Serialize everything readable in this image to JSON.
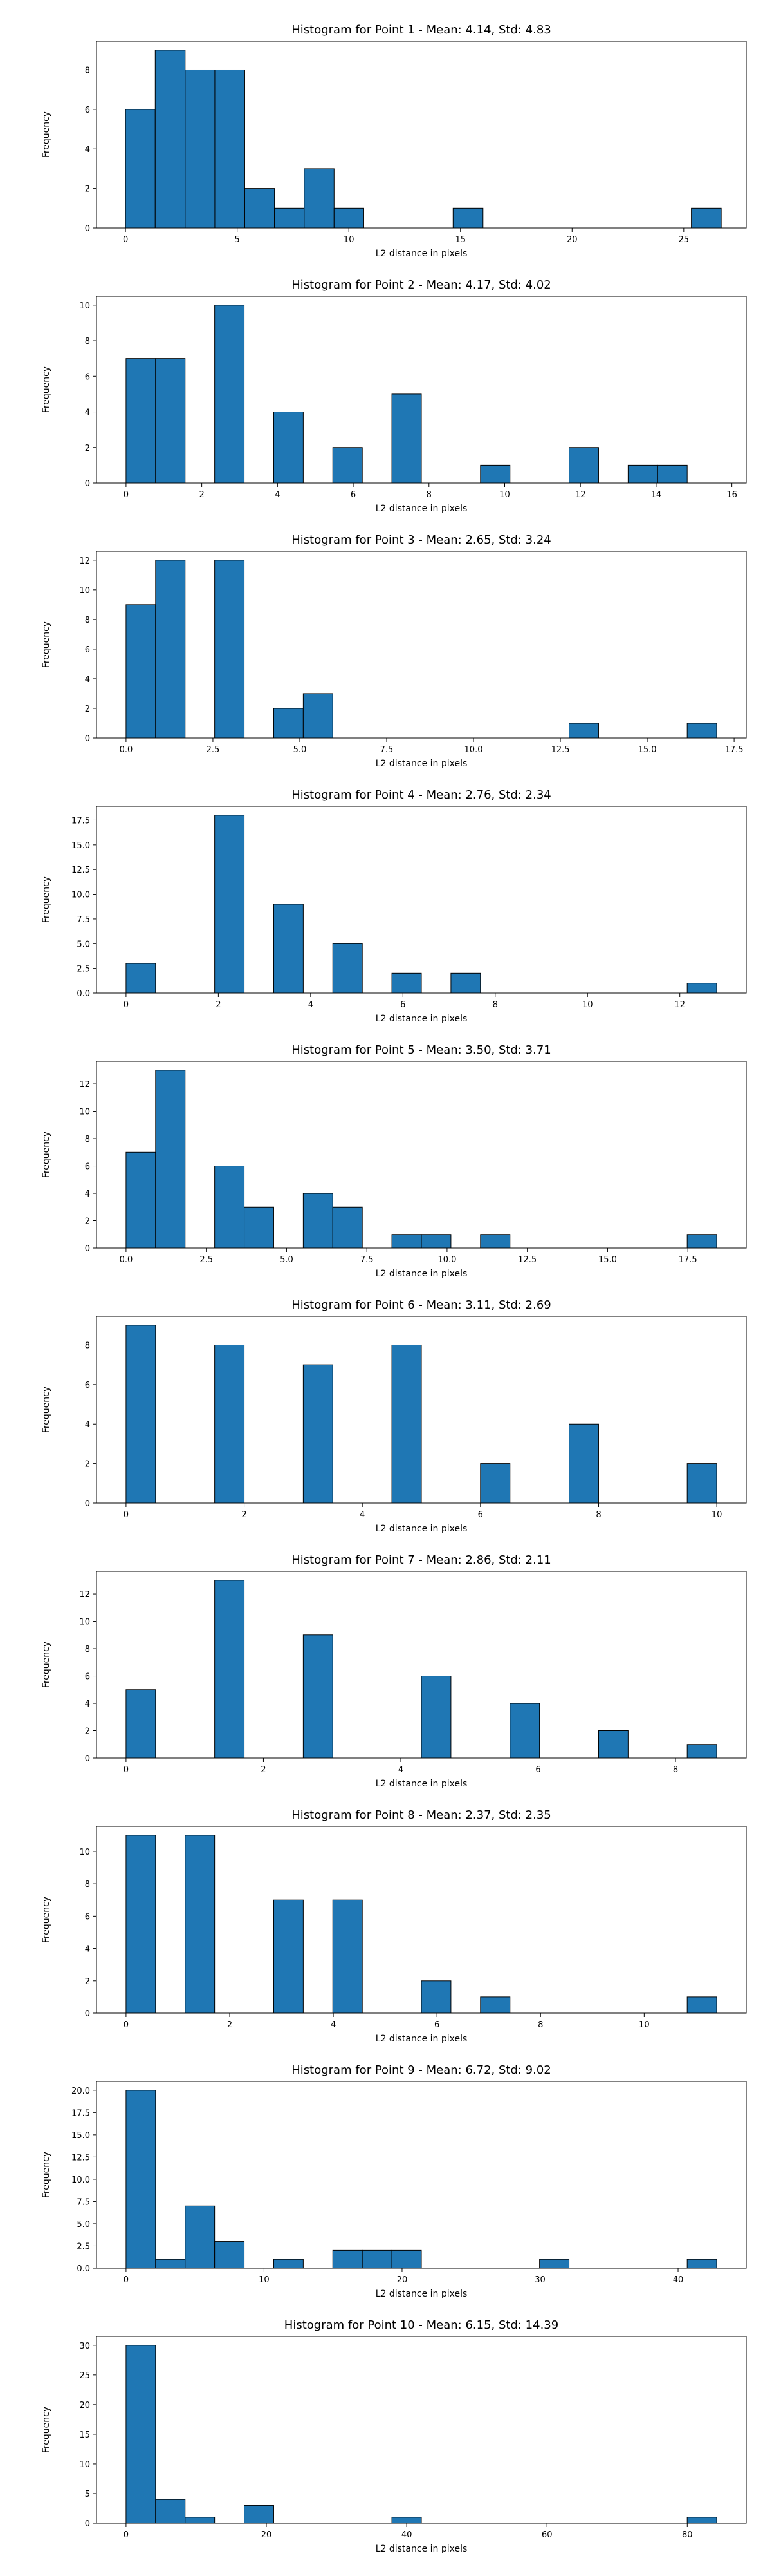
{
  "chart_data": [
    {
      "type": "bar",
      "title": "Histogram for Point 1 - Mean: 4.14, Std: 4.83",
      "xlabel": "L2 distance in pixels",
      "ylabel": "Frequency",
      "xlim": [
        -1.3,
        27.8
      ],
      "ylim": [
        0,
        9.45
      ],
      "xticks": [
        0,
        5,
        10,
        15,
        20,
        25
      ],
      "xtick_labels": [
        "0",
        "5",
        "10",
        "15",
        "20",
        "25"
      ],
      "yticks": [
        0,
        2,
        4,
        6,
        8
      ],
      "ytick_labels": [
        "0",
        "2",
        "4",
        "6",
        "8"
      ],
      "bin_edges": [
        0.0,
        1.33,
        2.67,
        4.0,
        5.34,
        6.67,
        8.0,
        9.34,
        10.67,
        12.0,
        13.34,
        14.67,
        16.01,
        17.34,
        18.67,
        20.01,
        21.34,
        22.68,
        24.01,
        25.34,
        26.68
      ],
      "values": [
        6,
        9,
        8,
        8,
        2,
        1,
        3,
        1,
        0,
        0,
        0,
        1,
        0,
        0,
        0,
        0,
        0,
        0,
        0,
        1
      ],
      "grid": false
    },
    {
      "type": "bar",
      "title": "Histogram for Point 2 - Mean: 4.17, Std: 4.02",
      "xlabel": "L2 distance in pixels",
      "ylabel": "Frequency",
      "xlim": [
        -0.78,
        16.38
      ],
      "ylim": [
        0,
        10.5
      ],
      "xticks": [
        0,
        2,
        4,
        6,
        8,
        10,
        12,
        14,
        16
      ],
      "xtick_labels": [
        "0",
        "2",
        "4",
        "6",
        "8",
        "10",
        "12",
        "14",
        "16"
      ],
      "yticks": [
        0,
        2,
        4,
        6,
        8,
        10
      ],
      "ytick_labels": [
        "0",
        "2",
        "4",
        "6",
        "8",
        "10"
      ],
      "bin_edges": [
        0.0,
        0.78,
        1.56,
        2.34,
        3.12,
        3.9,
        4.68,
        5.46,
        6.24,
        7.02,
        7.8,
        8.58,
        9.36,
        10.14,
        10.92,
        11.7,
        12.48,
        13.26,
        14.04,
        14.82,
        15.6
      ],
      "values": [
        7,
        7,
        0,
        10,
        0,
        4,
        0,
        2,
        0,
        5,
        0,
        0,
        1,
        0,
        0,
        2,
        0,
        1,
        1,
        0
      ],
      "grid": false
    },
    {
      "type": "bar",
      "title": "Histogram for Point 3 - Mean: 2.65, Std: 3.24",
      "xlabel": "L2 distance in pixels",
      "ylabel": "Frequency",
      "xlim": [
        -0.85,
        17.85
      ],
      "ylim": [
        0,
        12.6
      ],
      "xticks": [
        0,
        2.5,
        5,
        7.5,
        10,
        12.5,
        15,
        17.5
      ],
      "xtick_labels": [
        "0.0",
        "2.5",
        "5.0",
        "7.5",
        "10.0",
        "12.5",
        "15.0",
        "17.5"
      ],
      "yticks": [
        0,
        2,
        4,
        6,
        8,
        10,
        12
      ],
      "ytick_labels": [
        "0",
        "2",
        "4",
        "6",
        "8",
        "10",
        "12"
      ],
      "bin_edges": [
        0.0,
        0.85,
        1.7,
        2.55,
        3.4,
        4.25,
        5.1,
        5.95,
        6.8,
        7.65,
        8.5,
        9.35,
        10.2,
        11.05,
        11.9,
        12.75,
        13.6,
        14.45,
        15.3,
        16.15,
        17.0
      ],
      "values": [
        9,
        12,
        0,
        12,
        0,
        2,
        3,
        0,
        0,
        0,
        0,
        0,
        0,
        0,
        0,
        1,
        0,
        0,
        0,
        1
      ],
      "grid": false
    },
    {
      "type": "bar",
      "title": "Histogram for Point 4 - Mean: 2.76, Std: 2.34",
      "xlabel": "L2 distance in pixels",
      "ylabel": "Frequency",
      "xlim": [
        -0.64,
        13.44
      ],
      "ylim": [
        0,
        18.9
      ],
      "xticks": [
        0,
        2,
        4,
        6,
        8,
        10,
        12
      ],
      "xtick_labels": [
        "0",
        "2",
        "4",
        "6",
        "8",
        "10",
        "12"
      ],
      "yticks": [
        0,
        2.5,
        5,
        7.5,
        10,
        12.5,
        15,
        17.5
      ],
      "ytick_labels": [
        "0.0",
        "2.5",
        "5.0",
        "7.5",
        "10.0",
        "12.5",
        "15.0",
        "17.5"
      ],
      "bin_edges": [
        0.0,
        0.64,
        1.28,
        1.92,
        2.56,
        3.2,
        3.84,
        4.48,
        5.12,
        5.76,
        6.4,
        7.04,
        7.68,
        8.32,
        8.96,
        9.6,
        10.24,
        10.88,
        11.52,
        12.16,
        12.8
      ],
      "values": [
        3,
        0,
        0,
        18,
        0,
        9,
        0,
        5,
        0,
        2,
        0,
        2,
        0,
        0,
        0,
        0,
        0,
        0,
        0,
        1
      ],
      "grid": false
    },
    {
      "type": "bar",
      "title": "Histogram for Point 5 - Mean: 3.50, Std: 3.71",
      "xlabel": "L2 distance in pixels",
      "ylabel": "Frequency",
      "xlim": [
        -0.92,
        19.32
      ],
      "ylim": [
        0,
        13.65
      ],
      "xticks": [
        0,
        2.5,
        5,
        7.5,
        10,
        12.5,
        15,
        17.5
      ],
      "xtick_labels": [
        "0.0",
        "2.5",
        "5.0",
        "7.5",
        "10.0",
        "12.5",
        "15.0",
        "17.5"
      ],
      "yticks": [
        0,
        2,
        4,
        6,
        8,
        10,
        12
      ],
      "ytick_labels": [
        "0",
        "2",
        "4",
        "6",
        "8",
        "10",
        "12"
      ],
      "bin_edges": [
        0.0,
        0.92,
        1.84,
        2.76,
        3.68,
        4.6,
        5.52,
        6.44,
        7.36,
        8.28,
        9.2,
        10.12,
        11.04,
        11.96,
        12.88,
        13.8,
        14.72,
        15.64,
        16.56,
        17.48,
        18.4
      ],
      "values": [
        7,
        13,
        0,
        6,
        3,
        0,
        4,
        3,
        0,
        1,
        1,
        0,
        1,
        0,
        0,
        0,
        0,
        0,
        0,
        1
      ],
      "grid": false
    },
    {
      "type": "bar",
      "title": "Histogram for Point 6 - Mean: 3.11, Std: 2.69",
      "xlabel": "L2 distance in pixels",
      "ylabel": "Frequency",
      "xlim": [
        -0.5,
        10.5
      ],
      "ylim": [
        0,
        9.45
      ],
      "xticks": [
        0,
        2,
        4,
        6,
        8,
        10
      ],
      "xtick_labels": [
        "0",
        "2",
        "4",
        "6",
        "8",
        "10"
      ],
      "yticks": [
        0,
        2,
        4,
        6,
        8
      ],
      "ytick_labels": [
        "0",
        "2",
        "4",
        "6",
        "8"
      ],
      "bin_edges": [
        0.0,
        0.5,
        1.0,
        1.5,
        2.0,
        2.5,
        3.0,
        3.5,
        4.0,
        4.5,
        5.0,
        5.5,
        6.0,
        6.5,
        7.0,
        7.5,
        8.0,
        8.5,
        9.0,
        9.5,
        10.0
      ],
      "values": [
        9,
        0,
        0,
        8,
        0,
        0,
        7,
        0,
        0,
        8,
        0,
        0,
        2,
        0,
        0,
        4,
        0,
        0,
        0,
        2
      ],
      "grid": false
    },
    {
      "type": "bar",
      "title": "Histogram for Point 7 - Mean: 2.86, Std: 2.11",
      "xlabel": "L2 distance in pixels",
      "ylabel": "Frequency",
      "xlim": [
        -0.43,
        9.03
      ],
      "ylim": [
        0,
        13.65
      ],
      "xticks": [
        0,
        2,
        4,
        6,
        8
      ],
      "xtick_labels": [
        "0",
        "2",
        "4",
        "6",
        "8"
      ],
      "yticks": [
        0,
        2,
        4,
        6,
        8,
        10,
        12
      ],
      "ytick_labels": [
        "0",
        "2",
        "4",
        "6",
        "8",
        "10",
        "12"
      ],
      "bin_edges": [
        0.0,
        0.43,
        0.86,
        1.29,
        1.72,
        2.15,
        2.58,
        3.01,
        3.44,
        3.87,
        4.3,
        4.73,
        5.16,
        5.59,
        6.02,
        6.45,
        6.88,
        7.31,
        7.74,
        8.17,
        8.6
      ],
      "values": [
        5,
        0,
        0,
        13,
        0,
        0,
        9,
        0,
        0,
        0,
        6,
        0,
        0,
        4,
        0,
        0,
        2,
        0,
        0,
        1
      ],
      "grid": false
    },
    {
      "type": "bar",
      "title": "Histogram for Point 8 - Mean: 2.37, Std: 2.35",
      "xlabel": "L2 distance in pixels",
      "ylabel": "Frequency",
      "xlim": [
        -0.57,
        11.97
      ],
      "ylim": [
        0,
        11.55
      ],
      "xticks": [
        0,
        2,
        4,
        6,
        8,
        10
      ],
      "xtick_labels": [
        "0",
        "2",
        "4",
        "6",
        "8",
        "10"
      ],
      "yticks": [
        0,
        2,
        4,
        6,
        8,
        10
      ],
      "ytick_labels": [
        "0",
        "2",
        "4",
        "6",
        "8",
        "10"
      ],
      "bin_edges": [
        0.0,
        0.57,
        1.14,
        1.71,
        2.28,
        2.85,
        3.42,
        3.99,
        4.56,
        5.13,
        5.7,
        6.27,
        6.84,
        7.41,
        7.98,
        8.55,
        9.12,
        9.69,
        10.26,
        10.83,
        11.4
      ],
      "values": [
        11,
        0,
        11,
        0,
        0,
        7,
        0,
        7,
        0,
        0,
        2,
        0,
        1,
        0,
        0,
        0,
        0,
        0,
        0,
        1
      ],
      "grid": false
    },
    {
      "type": "bar",
      "title": "Histogram for Point 9 - Mean: 6.72, Std: 9.02",
      "xlabel": "L2 distance in pixels",
      "ylabel": "Frequency",
      "xlim": [
        -2.14,
        44.94
      ],
      "ylim": [
        0,
        21.0
      ],
      "xticks": [
        0,
        10,
        20,
        30,
        40
      ],
      "xtick_labels": [
        "0",
        "10",
        "20",
        "30",
        "40"
      ],
      "yticks": [
        0,
        2.5,
        5,
        7.5,
        10,
        12.5,
        15,
        17.5,
        20
      ],
      "ytick_labels": [
        "0.0",
        "2.5",
        "5.0",
        "7.5",
        "10.0",
        "12.5",
        "15.0",
        "17.5",
        "20.0"
      ],
      "bin_edges": [
        0.0,
        2.14,
        4.28,
        6.42,
        8.56,
        10.7,
        12.84,
        14.98,
        17.12,
        19.26,
        21.4,
        23.54,
        25.68,
        27.82,
        29.96,
        32.1,
        34.24,
        36.38,
        38.52,
        40.66,
        42.8
      ],
      "values": [
        20,
        1,
        7,
        3,
        0,
        1,
        0,
        2,
        2,
        2,
        0,
        0,
        0,
        0,
        1,
        0,
        0,
        0,
        0,
        1
      ],
      "grid": false
    },
    {
      "type": "bar",
      "title": "Histogram for Point 10 - Mean: 6.15, Std: 14.39",
      "xlabel": "L2 distance in pixels",
      "ylabel": "Frequency",
      "xlim": [
        -4.21,
        88.41
      ],
      "ylim": [
        0,
        31.5
      ],
      "xticks": [
        0,
        20,
        40,
        60,
        80
      ],
      "xtick_labels": [
        "0",
        "20",
        "40",
        "60",
        "80"
      ],
      "yticks": [
        0,
        5,
        10,
        15,
        20,
        25,
        30
      ],
      "ytick_labels": [
        "0",
        "5",
        "10",
        "15",
        "20",
        "25",
        "30"
      ],
      "bin_edges": [
        0.0,
        4.21,
        8.42,
        12.63,
        16.84,
        21.05,
        25.26,
        29.47,
        33.68,
        37.89,
        42.1,
        46.31,
        50.52,
        54.73,
        58.94,
        63.15,
        67.36,
        71.57,
        75.78,
        79.99,
        84.2
      ],
      "values": [
        30,
        4,
        1,
        0,
        3,
        0,
        0,
        0,
        0,
        1,
        0,
        0,
        0,
        0,
        0,
        0,
        0,
        0,
        0,
        1
      ],
      "grid": false
    }
  ]
}
